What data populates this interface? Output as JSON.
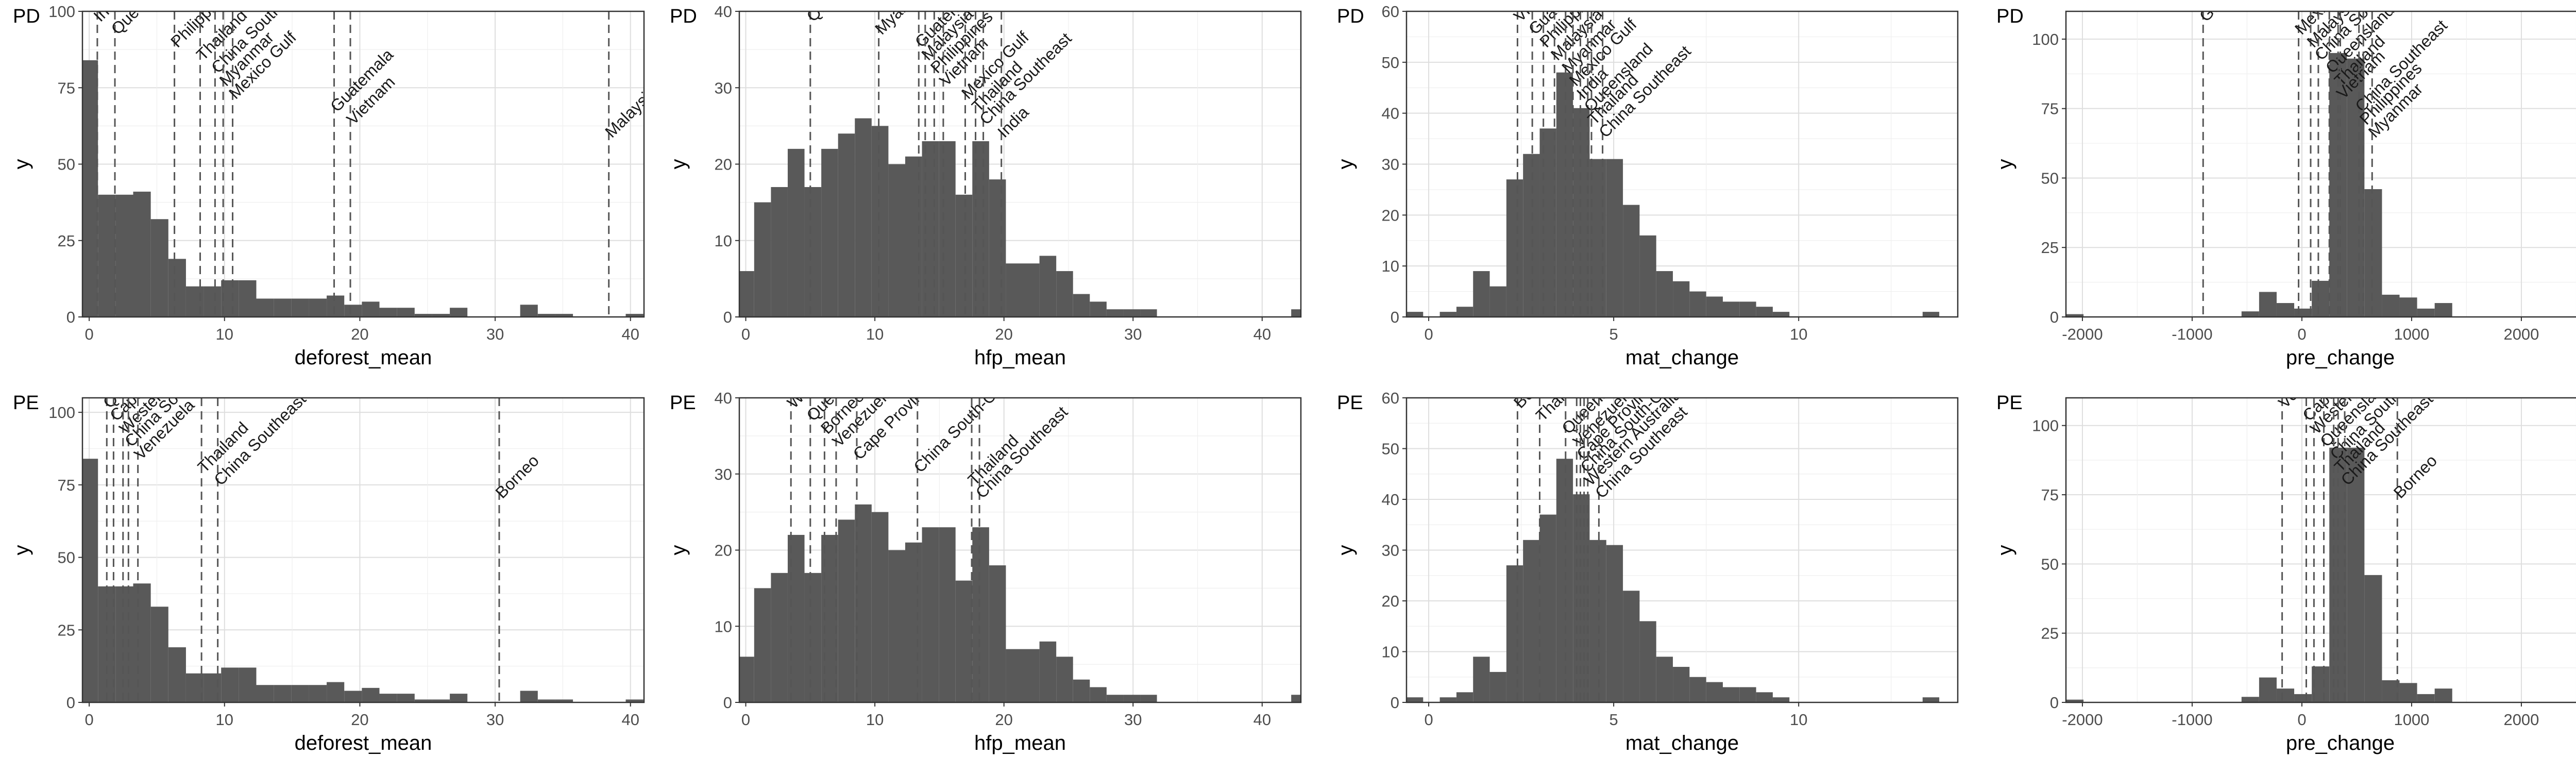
{
  "chart_data": [
    {
      "id": "pd_deforest",
      "type": "bar",
      "row_label": "PD",
      "xlabel": "deforest_mean",
      "ylabel": "y",
      "xlim": [
        -0.5,
        41
      ],
      "ylim": [
        0,
        100
      ],
      "xticks": [
        0,
        10,
        20,
        30,
        40
      ],
      "yticks": [
        0,
        25,
        50,
        75,
        100
      ],
      "bin_start": -0.65,
      "bin_width": 1.3,
      "values": [
        84,
        40,
        40,
        41,
        32,
        19,
        10,
        10,
        12,
        12,
        6,
        6,
        6,
        6,
        7,
        4,
        5,
        3,
        3,
        1,
        1,
        3,
        0,
        0,
        0,
        4,
        1,
        1,
        0,
        0,
        0,
        1,
        0
      ],
      "vlines": [
        {
          "label": "India",
          "x": 0.6
        },
        {
          "label": "Queensland",
          "x": 1.9
        },
        {
          "label": "Philippines",
          "x": 6.3
        },
        {
          "label": "Thailand",
          "x": 8.2
        },
        {
          "label": "China Southeast",
          "x": 9.3
        },
        {
          "label": "Myanmar",
          "x": 9.9
        },
        {
          "label": "Mexico Gulf",
          "x": 10.6
        },
        {
          "label": "Guatemala",
          "x": 18.1
        },
        {
          "label": "Vietnam",
          "x": 19.3
        },
        {
          "label": "Malaysia",
          "x": 38.4
        }
      ]
    },
    {
      "id": "pd_hfp",
      "type": "bar",
      "row_label": "PD",
      "xlabel": "hfp_mean",
      "ylabel": "y",
      "xlim": [
        -0.5,
        43
      ],
      "ylim": [
        0,
        40
      ],
      "xticks": [
        0,
        10,
        20,
        30,
        40
      ],
      "yticks": [
        0,
        10,
        20,
        30,
        40
      ],
      "bin_start": -0.65,
      "bin_width": 1.3,
      "values": [
        6,
        15,
        17,
        22,
        17,
        22,
        24,
        26,
        25,
        20,
        21,
        23,
        23,
        16,
        23,
        18,
        7,
        7,
        8,
        6,
        3,
        2,
        1,
        1,
        1,
        0,
        0,
        0,
        0,
        0,
        0,
        0,
        0,
        1
      ],
      "vlines": [
        {
          "label": "Queensland",
          "x": 5.0
        },
        {
          "label": "Myanmar",
          "x": 10.3
        },
        {
          "label": "Guatemala",
          "x": 13.4
        },
        {
          "label": "Malaysia",
          "x": 13.9
        },
        {
          "label": "Philippines",
          "x": 14.6
        },
        {
          "label": "Vietnam",
          "x": 15.3
        },
        {
          "label": "Mexico Gulf",
          "x": 17.0
        },
        {
          "label": "Thailand",
          "x": 17.8
        },
        {
          "label": "China Southeast",
          "x": 18.4
        },
        {
          "label": "India",
          "x": 19.8
        }
      ]
    },
    {
      "id": "pd_mat",
      "type": "bar",
      "row_label": "PD",
      "xlabel": "mat_change",
      "ylabel": "y",
      "xlim": [
        -0.6,
        14.3
      ],
      "ylim": [
        0,
        60
      ],
      "xticks": [
        0,
        5,
        10
      ],
      "yticks": [
        0,
        10,
        20,
        30,
        40,
        50,
        60
      ],
      "bin_start": -0.6,
      "bin_width": 0.45,
      "values": [
        1,
        0,
        1,
        2,
        9,
        6,
        27,
        32,
        37,
        48,
        41,
        31,
        31,
        22,
        16,
        9,
        7,
        5,
        4,
        3,
        3,
        2,
        1,
        0,
        0,
        0,
        0,
        0,
        0,
        0,
        0,
        1,
        0,
        0
      ],
      "vlines": [
        {
          "label": "Vietnam",
          "x": 2.4
        },
        {
          "label": "Guatemala",
          "x": 2.8
        },
        {
          "label": "Philippines",
          "x": 3.1
        },
        {
          "label": "Malaysia",
          "x": 3.4
        },
        {
          "label": "Myanmar",
          "x": 3.7
        },
        {
          "label": "Mexico Gulf",
          "x": 3.9
        },
        {
          "label": "India",
          "x": 4.1
        },
        {
          "label": "Queensland",
          "x": 4.3
        },
        {
          "label": "Thailand",
          "x": 4.4
        },
        {
          "label": "China Southeast",
          "x": 4.7
        }
      ]
    },
    {
      "id": "pd_pre",
      "type": "bar",
      "row_label": "PD",
      "xlabel": "pre_change",
      "ylabel": "y",
      "xlim": [
        -2150,
        2850
      ],
      "ylim": [
        0,
        110
      ],
      "xticks": [
        -2000,
        -1000,
        0,
        1000,
        2000
      ],
      "yticks": [
        0,
        25,
        50,
        75,
        100
      ],
      "bin_start": -2150,
      "bin_width": 160,
      "values": [
        1,
        0,
        0,
        0,
        0,
        0,
        0,
        0,
        0,
        0,
        2,
        9,
        5,
        3,
        13,
        95,
        93,
        46,
        8,
        7,
        3,
        5,
        0,
        0,
        0,
        0,
        0,
        0,
        0,
        0,
        0,
        1
      ],
      "vlines": [
        {
          "label": "Guatemala",
          "x": -900
        },
        {
          "label": "Mexico Gulf",
          "x": -30
        },
        {
          "label": "Malaysia",
          "x": 80
        },
        {
          "label": "China South-Central",
          "x": 150
        },
        {
          "label": "Queensland",
          "x": 250
        },
        {
          "label": "Thailand",
          "x": 330
        },
        {
          "label": "Vietnam",
          "x": 350
        },
        {
          "label": "China Southeast",
          "x": 520
        },
        {
          "label": "Philippines",
          "x": 560
        },
        {
          "label": "Myanmar",
          "x": 640
        }
      ]
    },
    {
      "id": "pe_deforest",
      "type": "bar",
      "row_label": "PE",
      "xlabel": "deforest_mean",
      "ylabel": "y",
      "xlim": [
        -0.5,
        41
      ],
      "ylim": [
        0,
        105
      ],
      "xticks": [
        0,
        10,
        20,
        30,
        40
      ],
      "yticks": [
        0,
        25,
        50,
        75,
        100
      ],
      "bin_start": -0.65,
      "bin_width": 1.3,
      "values": [
        84,
        40,
        40,
        41,
        33,
        19,
        10,
        10,
        12,
        12,
        6,
        6,
        6,
        6,
        7,
        4,
        5,
        3,
        3,
        1,
        1,
        3,
        0,
        0,
        0,
        4,
        1,
        1,
        0,
        0,
        0,
        1,
        0
      ],
      "vlines": [
        {
          "label": "Queensland",
          "x": 1.3
        },
        {
          "label": "Cape Provinces",
          "x": 1.8
        },
        {
          "label": "Western Australia",
          "x": 2.5
        },
        {
          "label": "China South-Central",
          "x": 2.9
        },
        {
          "label": "Venezuela",
          "x": 3.6
        },
        {
          "label": "Thailand",
          "x": 8.3
        },
        {
          "label": "China Southeast",
          "x": 9.5
        },
        {
          "label": "Borneo",
          "x": 30.3
        }
      ]
    },
    {
      "id": "pe_hfp",
      "type": "bar",
      "row_label": "PE",
      "xlabel": "hfp_mean",
      "ylabel": "y",
      "xlim": [
        -0.5,
        43
      ],
      "ylim": [
        0,
        40
      ],
      "xticks": [
        0,
        10,
        20,
        30,
        40
      ],
      "yticks": [
        0,
        10,
        20,
        30,
        40
      ],
      "bin_start": -0.65,
      "bin_width": 1.3,
      "values": [
        6,
        15,
        17,
        22,
        17,
        22,
        24,
        26,
        25,
        20,
        21,
        23,
        23,
        16,
        23,
        18,
        7,
        7,
        8,
        6,
        3,
        2,
        1,
        1,
        1,
        0,
        0,
        0,
        0,
        0,
        0,
        0,
        0,
        1
      ],
      "vlines": [
        {
          "label": "Western Australia",
          "x": 3.5
        },
        {
          "label": "Queensland",
          "x": 5.0
        },
        {
          "label": "Borneo",
          "x": 6.1
        },
        {
          "label": "Venezuela",
          "x": 7.0
        },
        {
          "label": "Cape Provinces",
          "x": 8.6
        },
        {
          "label": "China South-Central",
          "x": 13.3
        },
        {
          "label": "Thailand",
          "x": 17.5
        },
        {
          "label": "China Southeast",
          "x": 18.1
        }
      ]
    },
    {
      "id": "pe_mat",
      "type": "bar",
      "row_label": "PE",
      "xlabel": "mat_change",
      "ylabel": "y",
      "xlim": [
        -0.6,
        14.3
      ],
      "ylim": [
        0,
        60
      ],
      "xticks": [
        0,
        5,
        10
      ],
      "yticks": [
        0,
        10,
        20,
        30,
        40,
        50,
        60
      ],
      "bin_start": -0.6,
      "bin_width": 0.45,
      "values": [
        1,
        0,
        1,
        2,
        9,
        6,
        27,
        32,
        37,
        48,
        41,
        32,
        31,
        22,
        16,
        9,
        7,
        5,
        4,
        3,
        3,
        2,
        1,
        0,
        0,
        0,
        0,
        0,
        0,
        0,
        0,
        1,
        0,
        0
      ],
      "vlines": [
        {
          "label": "Borneo",
          "x": 2.4
        },
        {
          "label": "Thailand",
          "x": 3.0
        },
        {
          "label": "Queensland",
          "x": 3.7
        },
        {
          "label": "Venezuela",
          "x": 4.0
        },
        {
          "label": "Cape Provinces",
          "x": 4.1
        },
        {
          "label": "China South-Central",
          "x": 4.2
        },
        {
          "label": "Western Australia",
          "x": 4.3
        },
        {
          "label": "China Southeast",
          "x": 4.6
        }
      ]
    },
    {
      "id": "pe_pre",
      "type": "bar",
      "row_label": "PE",
      "xlabel": "pre_change",
      "ylabel": "y",
      "xlim": [
        -2150,
        2850
      ],
      "ylim": [
        0,
        110
      ],
      "xticks": [
        -2000,
        -1000,
        0,
        1000,
        2000
      ],
      "yticks": [
        0,
        25,
        50,
        75,
        100
      ],
      "bin_start": -2150,
      "bin_width": 160,
      "values": [
        1,
        0,
        0,
        0,
        0,
        0,
        0,
        0,
        0,
        0,
        2,
        9,
        5,
        3,
        13,
        92,
        92,
        46,
        8,
        7,
        3,
        5,
        0,
        0,
        0,
        0,
        0,
        0,
        0,
        0,
        0,
        1
      ],
      "vlines": [
        {
          "label": "Venezuela",
          "x": -180
        },
        {
          "label": "Cape Provinces",
          "x": 40
        },
        {
          "label": "Western Australia",
          "x": 110
        },
        {
          "label": "Queensland",
          "x": 200
        },
        {
          "label": "China South-Central",
          "x": 290
        },
        {
          "label": "Thailand",
          "x": 330
        },
        {
          "label": "China Southeast",
          "x": 390
        },
        {
          "label": "Borneo",
          "x": 870
        }
      ]
    }
  ]
}
